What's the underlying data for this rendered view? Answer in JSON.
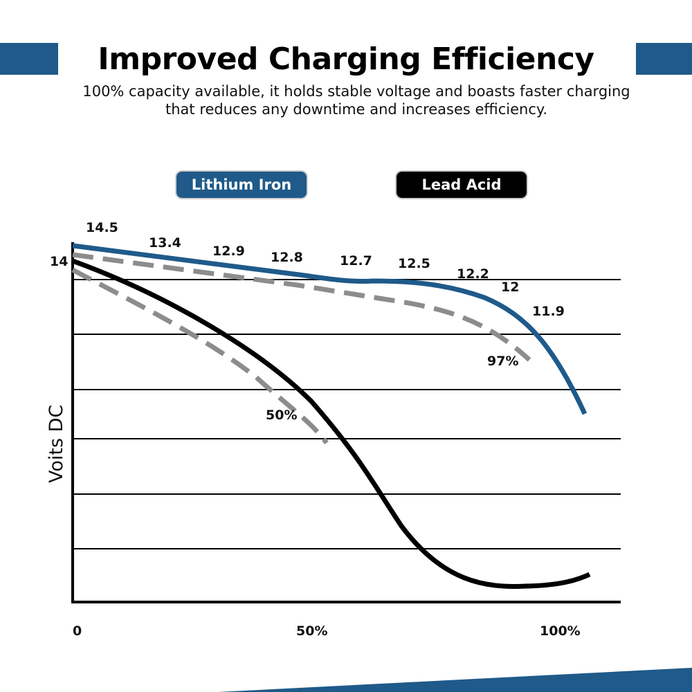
{
  "header": {
    "title": "Improved Charging Efficiency",
    "subtitle_lines": [
      "100% capacity available, it holds stable voltage and boasts faster charging",
      "that reduces any downtime and increases efficiency."
    ]
  },
  "colors": {
    "accent": "#1f5a8a",
    "lead": "#000000",
    "dashed": "#8c8c8c"
  },
  "chart_data": {
    "type": "line",
    "ylabel": "Voits DC",
    "y_tick_labels": [
      "14"
    ],
    "x_tick_labels": [
      "0",
      "50%",
      "100%"
    ],
    "legend": [
      {
        "name": "Lithium Iron",
        "color": "#1f5a8a"
      },
      {
        "name": "Lead Acid",
        "color": "#000000"
      }
    ],
    "legend_placement": "top",
    "grid": true,
    "series": [
      {
        "name": "Lithium Iron",
        "point_labels": [
          "14.5",
          "13.4",
          "12.9",
          "12.8",
          "12.7",
          "12.5",
          "12.2",
          "12",
          "11.9"
        ],
        "dashed_end_label": "97%"
      },
      {
        "name": "Lead Acid",
        "dashed_end_label": "50%"
      }
    ]
  }
}
